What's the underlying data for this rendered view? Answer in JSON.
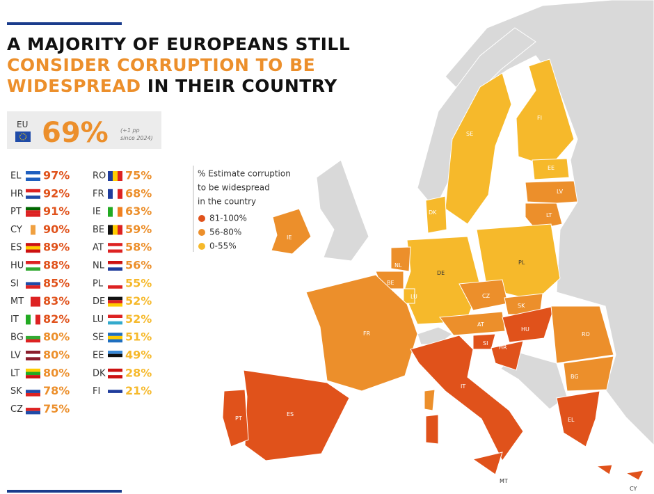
{
  "title": {
    "line1": "A MAJORITY OF EUROPEANS STILL",
    "line2": "CONSIDER CORRUPTION TO BE",
    "line3_highlight": "WIDESPREAD",
    "line3_rest": "IN THEIR COUNTRY"
  },
  "eu": {
    "label": "EU",
    "value": "69%",
    "note_line1": "(+1 pp",
    "note_line2": "since 2024)"
  },
  "countries": [
    {
      "code": "EL",
      "value": "97%",
      "color": "#e0521b"
    },
    {
      "code": "HR",
      "value": "92%",
      "color": "#e0521b"
    },
    {
      "code": "PT",
      "value": "91%",
      "color": "#e0521b"
    },
    {
      "code": "CY",
      "value": "90%",
      "color": "#e0521b"
    },
    {
      "code": "ES",
      "value": "89%",
      "color": "#e0521b"
    },
    {
      "code": "HU",
      "value": "88%",
      "color": "#e0521b"
    },
    {
      "code": "SI",
      "value": "85%",
      "color": "#e0521b"
    },
    {
      "code": "MT",
      "value": "83%",
      "color": "#e0521b"
    },
    {
      "code": "IT",
      "value": "82%",
      "color": "#e0521b"
    },
    {
      "code": "BG",
      "value": "80%",
      "color": "#ec8f2b"
    },
    {
      "code": "LV",
      "value": "80%",
      "color": "#ec8f2b"
    },
    {
      "code": "LT",
      "value": "80%",
      "color": "#ec8f2b"
    },
    {
      "code": "SK",
      "value": "78%",
      "color": "#ec8f2b"
    },
    {
      "code": "CZ",
      "value": "75%",
      "color": "#ec8f2b"
    },
    {
      "code": "RO",
      "value": "75%",
      "color": "#ec8f2b"
    },
    {
      "code": "FR",
      "value": "68%",
      "color": "#ec8f2b"
    },
    {
      "code": "IE",
      "value": "63%",
      "color": "#ec8f2b"
    },
    {
      "code": "BE",
      "value": "59%",
      "color": "#ec8f2b"
    },
    {
      "code": "AT",
      "value": "58%",
      "color": "#ec8f2b"
    },
    {
      "code": "NL",
      "value": "56%",
      "color": "#ec8f2b"
    },
    {
      "code": "PL",
      "value": "55%",
      "color": "#f6b92b"
    },
    {
      "code": "DE",
      "value": "52%",
      "color": "#f6b92b"
    },
    {
      "code": "LU",
      "value": "52%",
      "color": "#f6b92b"
    },
    {
      "code": "SE",
      "value": "51%",
      "color": "#f6b92b"
    },
    {
      "code": "EE",
      "value": "49%",
      "color": "#f6b92b"
    },
    {
      "code": "DK",
      "value": "28%",
      "color": "#f6b92b"
    },
    {
      "code": "FI",
      "value": "21%",
      "color": "#f6b92b"
    }
  ],
  "legend": {
    "title_lines": [
      "% Estimate corruption",
      "to be widespread",
      "in the country"
    ],
    "items": [
      {
        "label": "81-100%",
        "color": "#e0521b"
      },
      {
        "label": "56-80%",
        "color": "#ec8f2b"
      },
      {
        "label": "0-55%",
        "color": "#f6b92b"
      }
    ]
  },
  "map_labels": [
    "FI",
    "SE",
    "EE",
    "LV",
    "LT",
    "DK",
    "IE",
    "NL",
    "BE",
    "LU",
    "DE",
    "PL",
    "CZ",
    "SK",
    "AT",
    "HU",
    "RO",
    "FR",
    "SI",
    "HR",
    "BG",
    "IT",
    "ES",
    "PT",
    "EL",
    "MT",
    "CY"
  ]
}
